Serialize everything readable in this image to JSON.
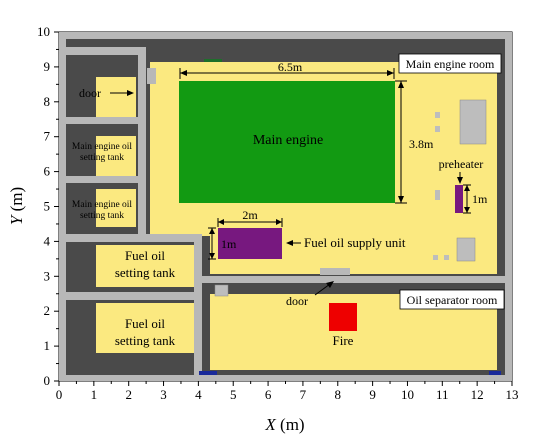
{
  "axes": {
    "x_label_var": "X",
    "x_label_unit": " (m)",
    "y_label_var": "Y",
    "y_label_unit": " (m)",
    "x_range": [
      0,
      13
    ],
    "y_range": [
      0,
      10
    ],
    "x_ticks": [
      "0",
      "1",
      "2",
      "3",
      "4",
      "5",
      "6",
      "7",
      "8",
      "9",
      "10",
      "11",
      "12",
      "13"
    ],
    "y_ticks": [
      "0",
      "1",
      "2",
      "3",
      "4",
      "5",
      "6",
      "7",
      "8",
      "9",
      "10"
    ]
  },
  "labels": {
    "main_engine_room": "Main engine room",
    "oil_separator_room": "Oil separator room",
    "main_engine": "Main engine",
    "door_top": "door",
    "door_bottom": "door",
    "main_engine_oil_tank_1": "Main engine oil setting tank",
    "main_engine_oil_tank_2": "Main engine oil setting tank",
    "fuel_oil_tank_1": "Fuel oil setting tank",
    "fuel_oil_tank_2": "Fuel oil setting tank",
    "fuel_oil_supply_unit": "Fuel oil supply unit",
    "preheater": "preheater",
    "fire": "Fire",
    "dim_6_5": "6.5m",
    "dim_3_8": "3.8m",
    "dim_2": "2m",
    "dim_1_supply": "1m",
    "dim_1_preheater": "1m"
  },
  "colors": {
    "floor": "#fbe980",
    "wall": "#b8b8b8",
    "dark": "#4a4a4a",
    "engine": "#129a12",
    "supply_unit": "#77187f",
    "fire": "#ee0000",
    "equipment": "#bdbdbd"
  }
}
